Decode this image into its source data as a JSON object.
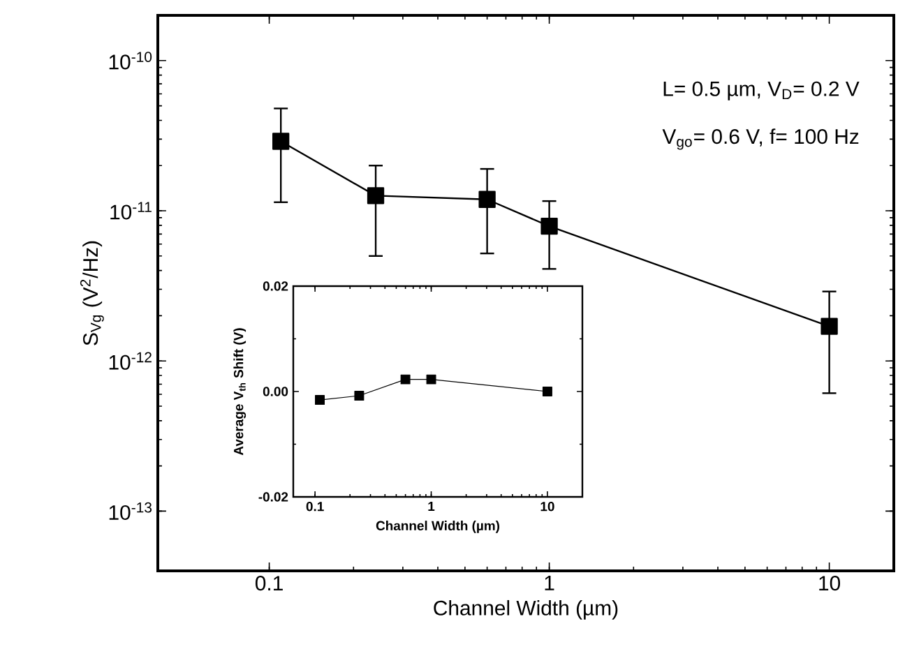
{
  "chart_data": [
    {
      "type": "line",
      "xlabel": "Channel Width (µm)",
      "ylabel": "S$_{Vg}$ (V$^{2}$/Hz)",
      "log": "xy",
      "marker": "square",
      "line_style": "solid",
      "annotations": [
        "L= 0.5 µm, V$_{D}$= 0.2 V",
        "V$_{go}$= 0.6 V, f= 100 Hz"
      ],
      "xlim": [
        0.04,
        17
      ],
      "ylim": [
        4e-14,
        2e-10
      ],
      "xticks": [
        0.1,
        1,
        10
      ],
      "yticks": [
        {
          "value": 1e-13,
          "label": "10$^{-13}$"
        },
        {
          "value": 1e-12,
          "label": "10$^{-12}$"
        },
        {
          "value": 1e-11,
          "label": "10$^{-11}$"
        },
        {
          "value": 1e-10,
          "label": "10$^{-10}$"
        }
      ],
      "x": [
        0.11,
        0.24,
        0.6,
        1,
        10
      ],
      "series": [
        {
          "color": "#000000",
          "values": [
            2.9e-11,
            1.26e-11,
            1.19e-11,
            7.9e-12,
            1.7e-12
          ],
          "errors": [
            [
              1.14e-11,
              4.8e-11
            ],
            [
              5e-12,
              2e-11
            ],
            [
              5.2e-12,
              1.9e-11
            ],
            [
              4.1e-12,
              1.16e-11
            ],
            [
              6.1e-13,
              2.9e-12
            ]
          ]
        }
      ]
    },
    {
      "type": "line",
      "xlabel": "Channel Width (µm)",
      "ylabel": "Average V$_{th}$ Shift (V)",
      "log": "x",
      "marker": "square",
      "line_style": "solid",
      "xlim": [
        0.065,
        20
      ],
      "ylim": [
        -0.02,
        0.02
      ],
      "xticks": [
        0.1,
        1,
        10
      ],
      "yticks": [
        {
          "value": -0.02,
          "label": "-0.02"
        },
        {
          "value": 0,
          "label": "0.00"
        },
        {
          "value": 0.02,
          "label": "0.02"
        }
      ],
      "x": [
        0.11,
        0.24,
        0.6,
        1,
        10
      ],
      "series": [
        {
          "color": "#000000",
          "values": [
            -0.0016,
            -0.0008,
            0.0023,
            0.0023,
            0.0
          ]
        }
      ]
    }
  ]
}
